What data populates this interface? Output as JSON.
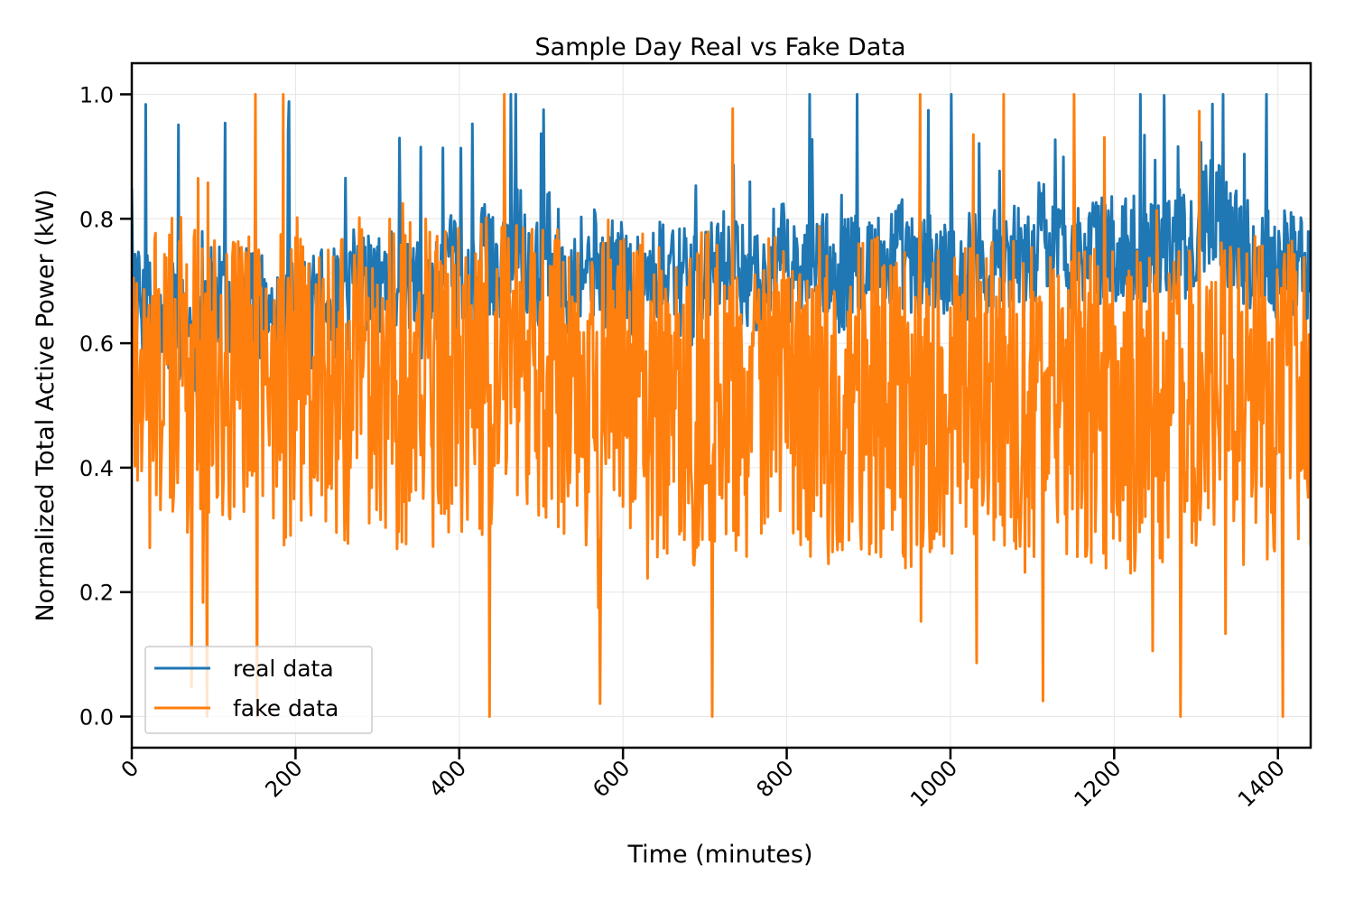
{
  "chart_data": {
    "type": "line",
    "title": "Sample Day Real vs Fake Data",
    "xlabel": "Time (minutes)",
    "ylabel": "Normalized Total Active Power (kW)",
    "xlim": [
      0,
      1440
    ],
    "ylim": [
      -0.05,
      1.05
    ],
    "x_ticks": [
      0,
      200,
      400,
      600,
      800,
      1000,
      1200,
      1400
    ],
    "x_tick_labels": [
      "0",
      "200",
      "400",
      "600",
      "800",
      "1000",
      "1200",
      "1400"
    ],
    "y_ticks": [
      0.0,
      0.2,
      0.4,
      0.6,
      0.8,
      1.0
    ],
    "y_tick_labels": [
      "0.0",
      "0.2",
      "0.4",
      "0.6",
      "0.8",
      "1.0"
    ],
    "grid": true,
    "legend_position": "lower-left",
    "x_step": 1,
    "series": [
      {
        "name": "real data",
        "color": "#1f77b4",
        "values_every_10_min": [
          0.72,
          0.65,
          0.66,
          0.62,
          0.6,
          0.66,
          0.62,
          0.64,
          0.58,
          0.68,
          0.66,
          0.67,
          0.65,
          0.68,
          0.69,
          0.67,
          0.65,
          0.62,
          0.66,
          0.7,
          0.68,
          0.66,
          0.64,
          0.7,
          0.68,
          0.66,
          0.65,
          0.7,
          0.67,
          0.71,
          0.68,
          0.72,
          0.7,
          0.71,
          0.69,
          0.67,
          0.66,
          0.69,
          0.7,
          0.72,
          0.69,
          0.68,
          0.7,
          0.74,
          0.72,
          0.73,
          0.75,
          0.8,
          0.74,
          0.7,
          0.72,
          0.76,
          0.73,
          0.7,
          0.71,
          0.73,
          0.72,
          0.74,
          0.7,
          0.71,
          0.72,
          0.69,
          0.7,
          0.71,
          0.7,
          0.72,
          0.74,
          0.7,
          0.69,
          0.68,
          0.7,
          0.71,
          0.72,
          0.73,
          0.7,
          0.72,
          0.71,
          0.69,
          0.72,
          0.74,
          0.73,
          0.71,
          0.7,
          0.72,
          0.74,
          0.72,
          0.7,
          0.71,
          0.72,
          0.73,
          0.74,
          0.72,
          0.73,
          0.74,
          0.75,
          0.72,
          0.71,
          0.73,
          0.72,
          0.71,
          0.74,
          0.7,
          0.72,
          0.73,
          0.72,
          0.74,
          0.73,
          0.75,
          0.74,
          0.73,
          0.74,
          0.78,
          0.76,
          0.74,
          0.75,
          0.74,
          0.73,
          0.74,
          0.75,
          0.76,
          0.74,
          0.75,
          0.76,
          0.75,
          0.74,
          0.76,
          0.77,
          0.75,
          0.76,
          0.74,
          0.75,
          0.8,
          0.82,
          0.8,
          0.77,
          0.76,
          0.75,
          0.73,
          0.74,
          0.75,
          0.72,
          0.74,
          0.73,
          0.72
        ]
      },
      {
        "name": "fake data",
        "color": "#ff7f0e",
        "values_every_10_min": [
          0.55,
          0.6,
          0.5,
          0.58,
          0.52,
          0.55,
          0.6,
          0.5,
          0.57,
          0.53,
          0.6,
          0.56,
          0.52,
          0.58,
          0.5,
          0.54,
          0.55,
          0.52,
          0.58,
          0.5,
          0.55,
          0.53,
          0.51,
          0.56,
          0.52,
          0.54,
          0.5,
          0.53,
          0.55,
          0.5,
          0.52,
          0.56,
          0.53,
          0.51,
          0.54,
          0.5,
          0.56,
          0.52,
          0.55,
          0.53,
          0.54,
          0.55,
          0.52,
          0.56,
          0.53,
          0.54,
          0.55,
          0.56,
          0.52,
          0.55,
          0.54,
          0.52,
          0.56,
          0.53,
          0.55,
          0.52,
          0.54,
          0.5,
          0.55,
          0.52,
          0.53,
          0.5,
          0.54,
          0.52,
          0.5,
          0.53,
          0.5,
          0.52,
          0.51,
          0.5,
          0.53,
          0.52,
          0.5,
          0.54,
          0.52,
          0.51,
          0.5,
          0.52,
          0.53,
          0.5,
          0.52,
          0.54,
          0.5,
          0.51,
          0.53,
          0.5,
          0.52,
          0.5,
          0.53,
          0.51,
          0.5,
          0.52,
          0.5,
          0.51,
          0.5,
          0.48,
          0.52,
          0.5,
          0.49,
          0.51,
          0.5,
          0.48,
          0.52,
          0.5,
          0.49,
          0.51,
          0.48,
          0.5,
          0.52,
          0.49,
          0.5,
          0.48,
          0.51,
          0.5,
          0.49,
          0.52,
          0.5,
          0.48,
          0.51,
          0.49,
          0.5,
          0.52,
          0.48,
          0.5,
          0.51,
          0.49,
          0.5,
          0.48,
          0.52,
          0.5,
          0.51,
          0.49,
          0.5,
          0.52,
          0.55,
          0.5,
          0.48,
          0.52,
          0.5,
          0.53,
          0.5,
          0.52,
          0.5,
          0.51
        ]
      }
    ]
  }
}
